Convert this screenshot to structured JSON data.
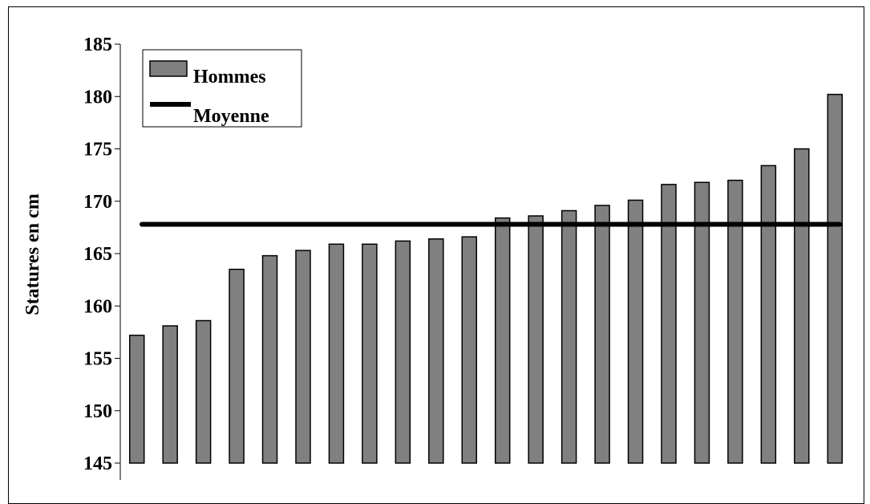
{
  "chart_data": {
    "type": "bar",
    "ylabel": "Statures en cm",
    "ylim": [
      145,
      185
    ],
    "yticks": [
      145,
      150,
      155,
      160,
      165,
      170,
      175,
      180,
      185
    ],
    "grid": false,
    "legend_position": "top-left",
    "series": [
      {
        "name": "Hommes",
        "type": "bar",
        "color": "#808080",
        "values": [
          157.2,
          158.1,
          158.6,
          163.5,
          164.8,
          165.3,
          165.9,
          165.9,
          166.2,
          166.4,
          166.6,
          168.4,
          168.6,
          169.1,
          169.6,
          170.1,
          171.6,
          171.8,
          172.0,
          173.4,
          175.0,
          180.2
        ]
      },
      {
        "name": "Moyenne",
        "type": "line",
        "color": "#000000",
        "value": 167.8
      }
    ]
  }
}
